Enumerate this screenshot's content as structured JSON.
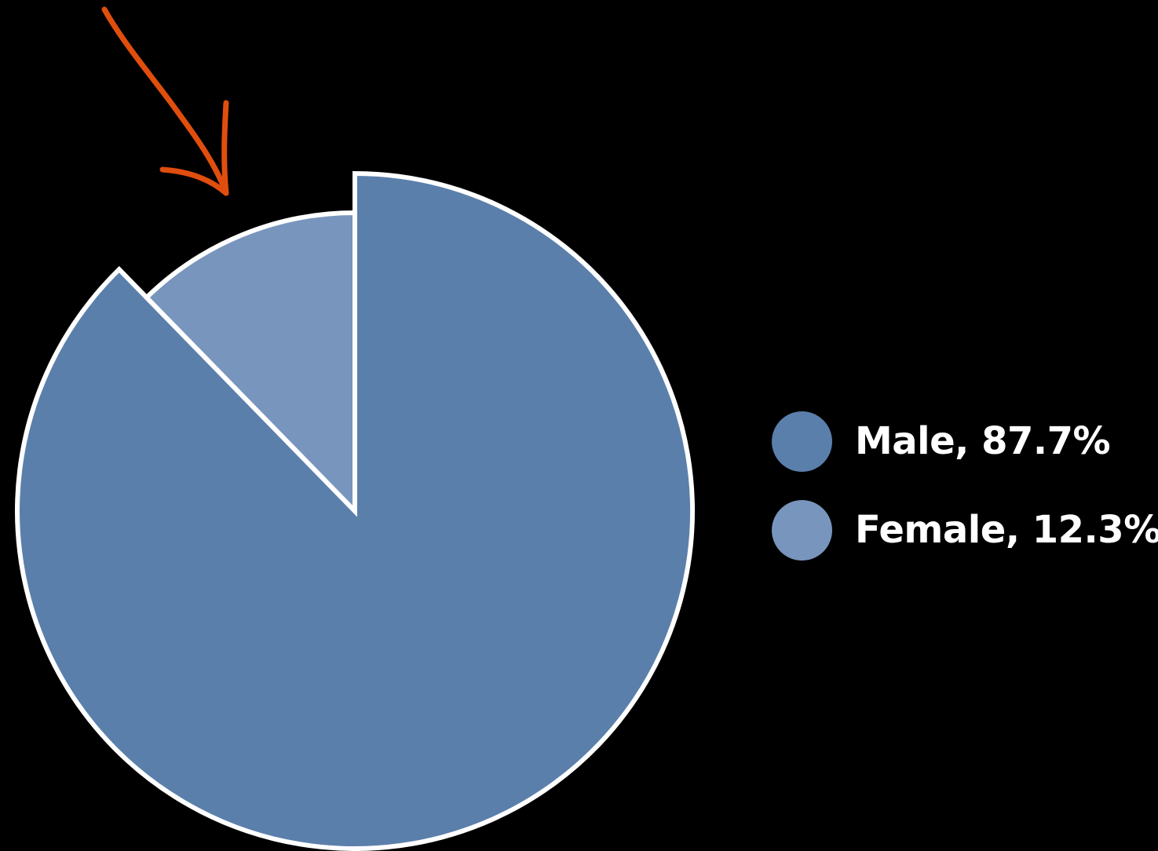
{
  "chart_data": {
    "type": "pie",
    "title": "",
    "slices": [
      {
        "label": "Male",
        "value": 87.7,
        "legend_text": "Male, 87.7%",
        "color": "#5b7fab"
      },
      {
        "label": "Female",
        "value": 12.3,
        "legend_text": "Female, 12.3%",
        "color": "#7895bd"
      }
    ],
    "exploded_slice": "Male",
    "start_angle_deg": 0,
    "direction": "clockwise",
    "slice_border_color": "#ffffff",
    "legend_position": "right",
    "background": "#000000"
  },
  "annotation": {
    "type": "hand-drawn-arrow",
    "color": "#e04e0e",
    "points_to": "Female"
  }
}
